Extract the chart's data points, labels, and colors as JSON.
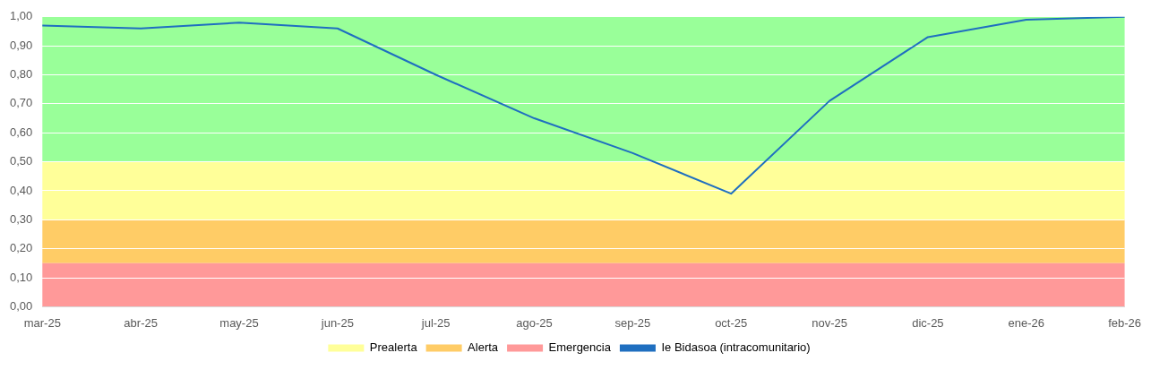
{
  "chart_data": {
    "type": "line",
    "categories": [
      "mar-25",
      "abr-25",
      "may-25",
      "jun-25",
      "jul-25",
      "ago-25",
      "sep-25",
      "oct-25",
      "nov-25",
      "dic-25",
      "ene-26",
      "feb-26"
    ],
    "series": [
      {
        "name": "Ie Bidasoa (intracomunitario)",
        "color": "#1f6fc0",
        "values": [
          0.97,
          0.96,
          0.98,
          0.96,
          0.8,
          0.65,
          0.53,
          0.39,
          0.71,
          0.93,
          0.99,
          1.0
        ]
      }
    ],
    "bands": [
      {
        "axis": "y",
        "from": 0.5,
        "to": 1.0,
        "color": "#99ff99"
      },
      {
        "axis": "y",
        "from": 0.3,
        "to": 0.5,
        "label": "Prealerta",
        "color": "#ffff99"
      },
      {
        "axis": "y",
        "from": 0.15,
        "to": 0.3,
        "label": "Alerta",
        "color": "#ffcc66"
      },
      {
        "axis": "y",
        "from": 0,
        "to": 0.15,
        "label": "Emergencia",
        "color": "#ff9999"
      }
    ],
    "ylim": [
      0,
      1
    ],
    "yticks": [
      {
        "value": 0,
        "label": "0,00"
      },
      {
        "value": 0.1,
        "label": "0,10"
      },
      {
        "value": 0.2,
        "label": "0,20"
      },
      {
        "value": 0.3,
        "label": "0,30"
      },
      {
        "value": 0.4,
        "label": "0,40"
      },
      {
        "value": 0.5,
        "label": "0,50"
      },
      {
        "value": 0.6,
        "label": "0,60"
      },
      {
        "value": 0.7,
        "label": "0,70"
      },
      {
        "value": 0.8,
        "label": "0,80"
      },
      {
        "value": 0.9,
        "label": "0,90"
      },
      {
        "value": 1,
        "label": "1,00"
      }
    ],
    "grid": "y",
    "legend": "bottom",
    "marker": "none",
    "line_style": "solid"
  }
}
